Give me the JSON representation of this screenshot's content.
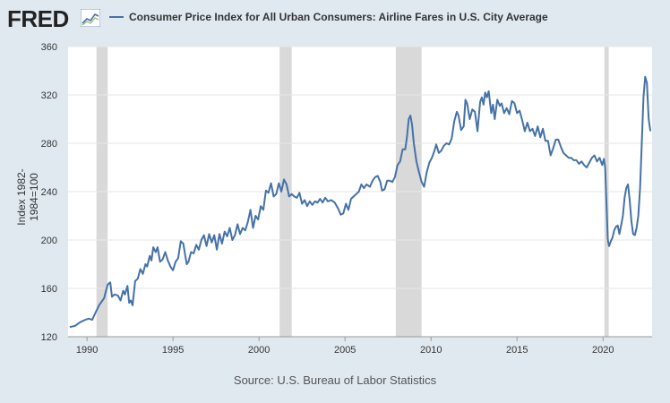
{
  "brand": "FRED",
  "source": "Source: U.S. Bureau of Labor Statistics",
  "colors": {
    "line": "#4572a7",
    "recession": "#d9d9d9",
    "plot_bg": "#ffffff",
    "bg": "#e1e9f0",
    "grid": "#e6e6e6"
  },
  "chart_data": {
    "type": "line",
    "series": [
      {
        "name": "Consumer Price Index for All Urban Consumers: Airline Fares in U.S. City Average",
        "color": "#4572a7"
      }
    ],
    "ylabel": "Index 1982-1984=100",
    "xlim": [
      1988.9,
      2022.85
    ],
    "ylim": [
      120,
      360
    ],
    "x_ticks": [
      1990,
      1995,
      2000,
      2005,
      2010,
      2015,
      2020
    ],
    "y_ticks": [
      120,
      160,
      200,
      240,
      280,
      320,
      360
    ],
    "recessions": [
      [
        1990.55,
        1991.2
      ],
      [
        2001.2,
        2001.9
      ],
      [
        2007.95,
        2009.45
      ],
      [
        2020.08,
        2020.33
      ]
    ],
    "points": [
      [
        1989.0,
        128
      ],
      [
        1989.3,
        129
      ],
      [
        1989.6,
        132
      ],
      [
        1989.9,
        134
      ],
      [
        1990.1,
        135
      ],
      [
        1990.3,
        134
      ],
      [
        1990.5,
        140
      ],
      [
        1990.7,
        146
      ],
      [
        1990.9,
        150
      ],
      [
        1991.0,
        152
      ],
      [
        1991.1,
        158
      ],
      [
        1991.2,
        163
      ],
      [
        1991.35,
        165
      ],
      [
        1991.45,
        153
      ],
      [
        1991.6,
        155
      ],
      [
        1991.8,
        154
      ],
      [
        1991.95,
        150
      ],
      [
        1992.1,
        158
      ],
      [
        1992.2,
        155
      ],
      [
        1992.35,
        162
      ],
      [
        1992.45,
        148
      ],
      [
        1992.55,
        150
      ],
      [
        1992.65,
        146
      ],
      [
        1992.8,
        166
      ],
      [
        1992.95,
        168
      ],
      [
        1993.1,
        176
      ],
      [
        1993.25,
        172
      ],
      [
        1993.4,
        180
      ],
      [
        1993.5,
        178
      ],
      [
        1993.65,
        187
      ],
      [
        1993.75,
        183
      ],
      [
        1993.85,
        194
      ],
      [
        1994.0,
        190
      ],
      [
        1994.1,
        194
      ],
      [
        1994.25,
        182
      ],
      [
        1994.4,
        184
      ],
      [
        1994.55,
        190
      ],
      [
        1994.7,
        183
      ],
      [
        1994.85,
        178
      ],
      [
        1995.0,
        175
      ],
      [
        1995.15,
        182
      ],
      [
        1995.3,
        185
      ],
      [
        1995.45,
        199
      ],
      [
        1995.6,
        197
      ],
      [
        1995.7,
        188
      ],
      [
        1995.8,
        180
      ],
      [
        1995.9,
        182
      ],
      [
        1996.05,
        190
      ],
      [
        1996.2,
        189
      ],
      [
        1996.35,
        196
      ],
      [
        1996.5,
        192
      ],
      [
        1996.65,
        200
      ],
      [
        1996.8,
        204
      ],
      [
        1996.95,
        195
      ],
      [
        1997.1,
        205
      ],
      [
        1997.25,
        198
      ],
      [
        1997.4,
        204
      ],
      [
        1997.55,
        192
      ],
      [
        1997.7,
        205
      ],
      [
        1997.85,
        197
      ],
      [
        1998.0,
        207
      ],
      [
        1998.15,
        203
      ],
      [
        1998.3,
        210
      ],
      [
        1998.45,
        200
      ],
      [
        1998.6,
        204
      ],
      [
        1998.75,
        213
      ],
      [
        1998.9,
        205
      ],
      [
        1999.05,
        210
      ],
      [
        1999.2,
        208
      ],
      [
        1999.35,
        215
      ],
      [
        1999.5,
        225
      ],
      [
        1999.65,
        210
      ],
      [
        1999.8,
        220
      ],
      [
        1999.95,
        217
      ],
      [
        2000.1,
        228
      ],
      [
        2000.25,
        225
      ],
      [
        2000.4,
        241
      ],
      [
        2000.55,
        239
      ],
      [
        2000.7,
        247
      ],
      [
        2000.85,
        236
      ],
      [
        2001.0,
        238
      ],
      [
        2001.15,
        247
      ],
      [
        2001.3,
        240
      ],
      [
        2001.45,
        250
      ],
      [
        2001.6,
        246
      ],
      [
        2001.75,
        236
      ],
      [
        2001.9,
        238
      ],
      [
        2002.05,
        236
      ],
      [
        2002.2,
        235
      ],
      [
        2002.35,
        239
      ],
      [
        2002.5,
        230
      ],
      [
        2002.65,
        233
      ],
      [
        2002.8,
        228
      ],
      [
        2002.95,
        232
      ],
      [
        2003.1,
        229
      ],
      [
        2003.25,
        232
      ],
      [
        2003.4,
        231
      ],
      [
        2003.55,
        234
      ],
      [
        2003.7,
        231
      ],
      [
        2003.85,
        235
      ],
      [
        2004.0,
        232
      ],
      [
        2004.2,
        233
      ],
      [
        2004.4,
        231
      ],
      [
        2004.6,
        226
      ],
      [
        2004.75,
        221
      ],
      [
        2004.9,
        222
      ],
      [
        2005.05,
        230
      ],
      [
        2005.2,
        225
      ],
      [
        2005.35,
        234
      ],
      [
        2005.5,
        236
      ],
      [
        2005.65,
        238
      ],
      [
        2005.8,
        240
      ],
      [
        2005.95,
        246
      ],
      [
        2006.1,
        243
      ],
      [
        2006.25,
        246
      ],
      [
        2006.45,
        244
      ],
      [
        2006.6,
        249
      ],
      [
        2006.75,
        252
      ],
      [
        2006.9,
        253
      ],
      [
        2007.05,
        248
      ],
      [
        2007.15,
        241
      ],
      [
        2007.3,
        242
      ],
      [
        2007.45,
        249
      ],
      [
        2007.6,
        249
      ],
      [
        2007.75,
        248
      ],
      [
        2007.9,
        252
      ],
      [
        2008.05,
        262
      ],
      [
        2008.2,
        265
      ],
      [
        2008.35,
        275
      ],
      [
        2008.5,
        275
      ],
      [
        2008.6,
        285
      ],
      [
        2008.7,
        300
      ],
      [
        2008.8,
        303
      ],
      [
        2008.9,
        295
      ],
      [
        2009.0,
        280
      ],
      [
        2009.15,
        265
      ],
      [
        2009.3,
        256
      ],
      [
        2009.45,
        248
      ],
      [
        2009.6,
        244
      ],
      [
        2009.75,
        256
      ],
      [
        2009.9,
        264
      ],
      [
        2010.05,
        268
      ],
      [
        2010.2,
        274
      ],
      [
        2010.3,
        279
      ],
      [
        2010.45,
        272
      ],
      [
        2010.6,
        274
      ],
      [
        2010.75,
        278
      ],
      [
        2010.9,
        280
      ],
      [
        2011.05,
        279
      ],
      [
        2011.2,
        284
      ],
      [
        2011.35,
        298
      ],
      [
        2011.5,
        306
      ],
      [
        2011.6,
        303
      ],
      [
        2011.75,
        291
      ],
      [
        2011.9,
        294
      ],
      [
        2012.0,
        316
      ],
      [
        2012.1,
        313
      ],
      [
        2012.25,
        300
      ],
      [
        2012.4,
        308
      ],
      [
        2012.55,
        306
      ],
      [
        2012.7,
        290
      ],
      [
        2012.85,
        314
      ],
      [
        2012.95,
        318
      ],
      [
        2013.05,
        312
      ],
      [
        2013.15,
        322
      ],
      [
        2013.25,
        318
      ],
      [
        2013.35,
        323
      ],
      [
        2013.5,
        305
      ],
      [
        2013.6,
        312
      ],
      [
        2013.7,
        300
      ],
      [
        2013.85,
        316
      ],
      [
        2014.0,
        311
      ],
      [
        2014.1,
        313
      ],
      [
        2014.25,
        305
      ],
      [
        2014.4,
        309
      ],
      [
        2014.55,
        304
      ],
      [
        2014.7,
        315
      ],
      [
        2014.85,
        313
      ],
      [
        2015.0,
        305
      ],
      [
        2015.15,
        307
      ],
      [
        2015.3,
        299
      ],
      [
        2015.45,
        290
      ],
      [
        2015.6,
        297
      ],
      [
        2015.75,
        290
      ],
      [
        2015.9,
        292
      ],
      [
        2016.05,
        286
      ],
      [
        2016.2,
        294
      ],
      [
        2016.35,
        285
      ],
      [
        2016.5,
        292
      ],
      [
        2016.65,
        282
      ],
      [
        2016.8,
        282
      ],
      [
        2016.95,
        270
      ],
      [
        2017.1,
        276
      ],
      [
        2017.25,
        283
      ],
      [
        2017.4,
        283
      ],
      [
        2017.55,
        277
      ],
      [
        2017.7,
        272
      ],
      [
        2017.85,
        270
      ],
      [
        2018.0,
        268
      ],
      [
        2018.15,
        268
      ],
      [
        2018.3,
        266
      ],
      [
        2018.45,
        266
      ],
      [
        2018.6,
        263
      ],
      [
        2018.75,
        265
      ],
      [
        2018.9,
        262
      ],
      [
        2019.05,
        260
      ],
      [
        2019.2,
        264
      ],
      [
        2019.35,
        268
      ],
      [
        2019.5,
        270
      ],
      [
        2019.65,
        265
      ],
      [
        2019.8,
        268
      ],
      [
        2019.95,
        262
      ],
      [
        2020.05,
        267
      ],
      [
        2020.12,
        260
      ],
      [
        2020.2,
        230
      ],
      [
        2020.28,
        200
      ],
      [
        2020.35,
        195
      ],
      [
        2020.45,
        199
      ],
      [
        2020.55,
        202
      ],
      [
        2020.65,
        208
      ],
      [
        2020.75,
        211
      ],
      [
        2020.85,
        212
      ],
      [
        2020.95,
        205
      ],
      [
        2021.05,
        212
      ],
      [
        2021.15,
        220
      ],
      [
        2021.25,
        235
      ],
      [
        2021.35,
        243
      ],
      [
        2021.45,
        246
      ],
      [
        2021.55,
        233
      ],
      [
        2021.65,
        215
      ],
      [
        2021.75,
        205
      ],
      [
        2021.85,
        204
      ],
      [
        2021.95,
        210
      ],
      [
        2022.05,
        220
      ],
      [
        2022.15,
        243
      ],
      [
        2022.25,
        280
      ],
      [
        2022.35,
        318
      ],
      [
        2022.45,
        335
      ],
      [
        2022.55,
        330
      ],
      [
        2022.65,
        300
      ],
      [
        2022.75,
        290
      ]
    ]
  }
}
